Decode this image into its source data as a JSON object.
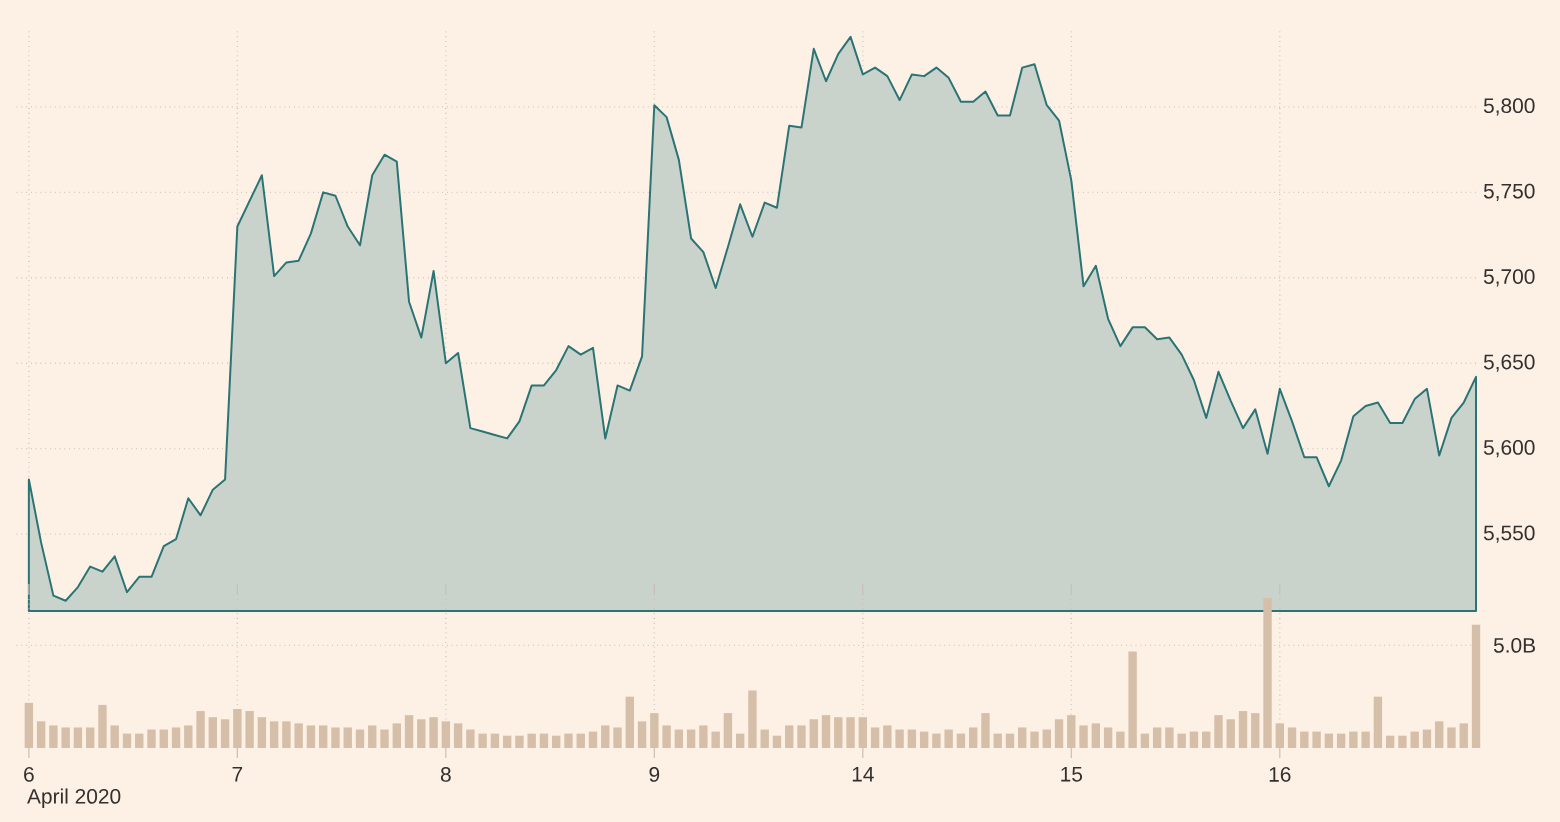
{
  "chart_data": [
    {
      "type": "area",
      "color": "#2a7475",
      "grid": true,
      "tick_labels": "y",
      "categories": [
        "6",
        null,
        null,
        null,
        null,
        null,
        null,
        null,
        null,
        null,
        null,
        null,
        null,
        null,
        null,
        null,
        null,
        "7",
        null,
        null,
        null,
        null,
        null,
        null,
        null,
        null,
        null,
        null,
        null,
        null,
        null,
        null,
        null,
        null,
        "8",
        null,
        null,
        null,
        null,
        null,
        null,
        null,
        null,
        null,
        null,
        null,
        null,
        null,
        null,
        null,
        null,
        "9",
        null,
        null,
        null,
        null,
        null,
        null,
        null,
        null,
        null,
        null,
        null,
        null,
        null,
        null,
        null,
        null,
        "14",
        null,
        null,
        null,
        null,
        null,
        null,
        null,
        null,
        null,
        null,
        null,
        null,
        null,
        null,
        null,
        null,
        "15",
        null,
        null,
        null,
        null,
        null,
        null,
        null,
        null,
        null,
        null,
        null,
        null,
        null,
        null,
        null,
        null,
        "16",
        null,
        null,
        null,
        null,
        null,
        null,
        null,
        null,
        null,
        null,
        null,
        null,
        null,
        null,
        null,
        null
      ],
      "values": [
        5582,
        5545,
        5514,
        5511,
        5519,
        5531,
        5528,
        5537,
        5516,
        5525,
        5525,
        5543,
        5547,
        5571,
        5561,
        5576,
        5582,
        5730,
        5745,
        5760,
        5701,
        5709,
        5710,
        5726,
        5750,
        5748,
        5730,
        5719,
        5760,
        5772,
        5768,
        5686,
        5665,
        5704,
        5650,
        5656,
        5612,
        5610,
        5608,
        5606,
        5616,
        5637,
        5637,
        5646,
        5660,
        5655,
        5659,
        5606,
        5637,
        5634,
        5654,
        5801,
        5794,
        5769,
        5723,
        5715,
        5694,
        5718,
        5743,
        5724,
        5744,
        5741,
        5789,
        5788,
        5834,
        5815,
        5831,
        5841,
        5819,
        5823,
        5818,
        5804,
        5819,
        5818,
        5823,
        5817,
        5803,
        5803,
        5809,
        5795,
        5795,
        5823,
        5825,
        5801,
        5792,
        5757,
        5695,
        5707,
        5676,
        5660,
        5671,
        5671,
        5664,
        5665,
        5655,
        5640,
        5618,
        5645,
        5628,
        5612,
        5623,
        5597,
        5635,
        5616,
        5595,
        5595,
        5578,
        5593,
        5619,
        5625,
        5627,
        5615,
        5615,
        5629,
        5635,
        5596,
        5618,
        5627,
        5642
      ],
      "ylim": [
        5505,
        5845
      ],
      "yticks": [
        {
          "value": 5550,
          "label": "5,550"
        },
        {
          "value": 5600,
          "label": "5,600"
        },
        {
          "value": 5650,
          "label": "5,650"
        },
        {
          "value": 5700,
          "label": "5,700"
        },
        {
          "value": 5750,
          "label": "5,750"
        },
        {
          "value": 5800,
          "label": "5,800"
        }
      ]
    },
    {
      "type": "bar",
      "color": "#d6bfa8",
      "grid": true,
      "categories": [
        "6",
        null,
        null,
        null,
        null,
        null,
        null,
        null,
        null,
        null,
        null,
        null,
        null,
        null,
        null,
        null,
        null,
        "7",
        null,
        null,
        null,
        null,
        null,
        null,
        null,
        null,
        null,
        null,
        null,
        null,
        null,
        null,
        null,
        null,
        "8",
        null,
        null,
        null,
        null,
        null,
        null,
        null,
        null,
        null,
        null,
        null,
        null,
        null,
        null,
        null,
        null,
        "9",
        null,
        null,
        null,
        null,
        null,
        null,
        null,
        null,
        null,
        null,
        null,
        null,
        null,
        null,
        null,
        null,
        "14",
        null,
        null,
        null,
        null,
        null,
        null,
        null,
        null,
        null,
        null,
        null,
        null,
        null,
        null,
        null,
        null,
        "15",
        null,
        null,
        null,
        null,
        null,
        null,
        null,
        null,
        null,
        null,
        null,
        null,
        null,
        null,
        null,
        null,
        "16",
        null,
        null,
        null,
        null,
        null,
        null,
        null,
        null,
        null,
        null,
        null,
        null,
        null,
        null,
        null,
        null
      ],
      "values": [
        2.2,
        1.3,
        1.1,
        1.0,
        1.0,
        1.0,
        2.1,
        1.1,
        0.7,
        0.7,
        0.9,
        0.9,
        1.0,
        1.1,
        1.8,
        1.5,
        1.4,
        1.9,
        1.8,
        1.5,
        1.3,
        1.3,
        1.2,
        1.1,
        1.1,
        1.0,
        1.0,
        0.9,
        1.1,
        0.9,
        1.2,
        1.6,
        1.4,
        1.5,
        1.3,
        1.2,
        0.9,
        0.7,
        0.7,
        0.6,
        0.6,
        0.7,
        0.7,
        0.6,
        0.7,
        0.7,
        0.8,
        1.1,
        1.0,
        2.5,
        1.3,
        1.7,
        1.1,
        0.9,
        0.9,
        1.1,
        0.8,
        1.7,
        0.7,
        2.8,
        0.9,
        0.6,
        1.1,
        1.1,
        1.4,
        1.6,
        1.5,
        1.5,
        1.5,
        1.0,
        1.1,
        0.9,
        0.9,
        0.8,
        0.7,
        0.9,
        0.7,
        1.0,
        1.7,
        0.7,
        0.7,
        1.0,
        0.8,
        0.9,
        1.4,
        1.6,
        1.1,
        1.2,
        1.0,
        0.8,
        4.7,
        0.7,
        1.0,
        1.0,
        0.7,
        0.8,
        0.8,
        1.6,
        1.4,
        1.8,
        1.7,
        7.3,
        1.2,
        1.0,
        0.8,
        0.8,
        0.7,
        0.7,
        0.8,
        0.8,
        2.5,
        0.6,
        0.6,
        0.8,
        0.9,
        1.3,
        1.0,
        1.2,
        6.0
      ],
      "ylim": [
        0,
        7.5
      ],
      "yticks": [
        {
          "value": 5,
          "label": "5.0B"
        }
      ],
      "annotations": [
        "April 2020"
      ]
    }
  ]
}
